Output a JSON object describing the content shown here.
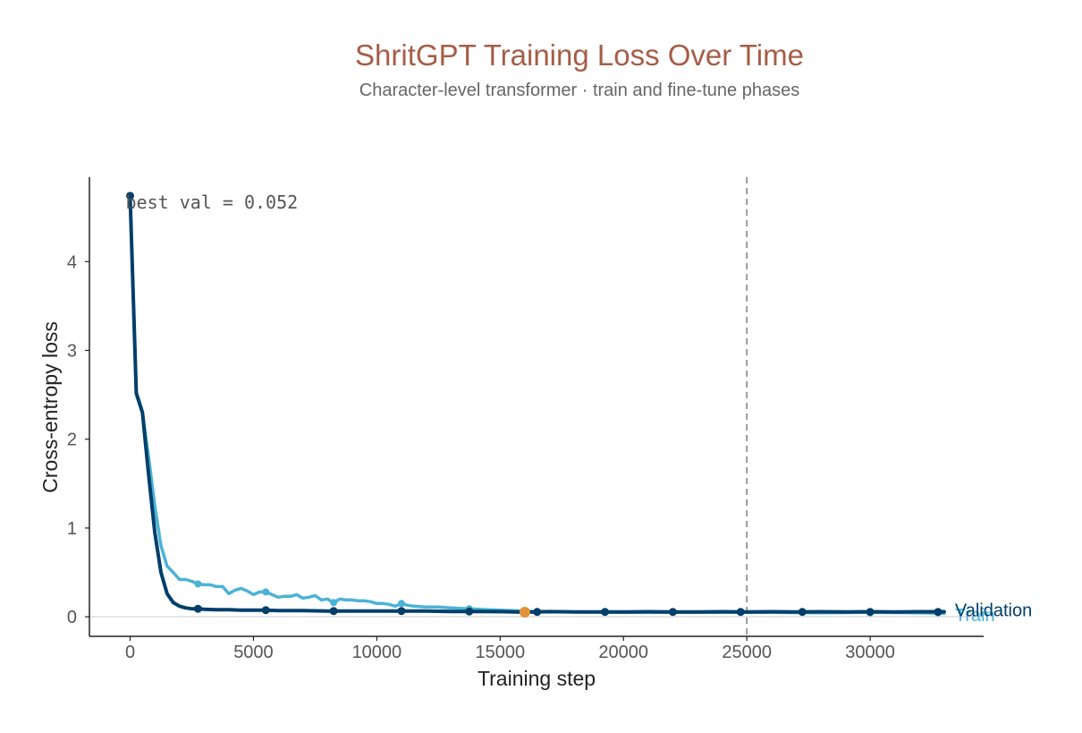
{
  "chart_data": {
    "type": "line",
    "title": "ShritGPT Training Loss Over Time",
    "subtitle": "Character-level transformer · train and fine-tune phases",
    "xlabel": "Training step",
    "ylabel": "Cross-entropy loss",
    "xlim": [
      -1650,
      34600
    ],
    "ylim": [
      -0.22,
      4.95
    ],
    "x_ticks": [
      0,
      5000,
      10000,
      15000,
      20000,
      25000,
      30000
    ],
    "y_ticks": [
      0,
      1,
      2,
      3,
      4
    ],
    "grid": false,
    "legend": "direct labels at right end of lines",
    "reference_lines": [
      {
        "orientation": "vertical",
        "x": 25000,
        "style": "dashed",
        "color": "#999999"
      },
      {
        "orientation": "horizontal",
        "y": 0,
        "style": "solid",
        "color": "#dddddd"
      }
    ],
    "annotations": [
      {
        "text": "best val = 0.052",
        "x": 0,
        "y": 4.67
      }
    ],
    "best_point": {
      "x": 16000,
      "y": 0.052,
      "color": "#e0913c"
    },
    "series": [
      {
        "name": "Train",
        "color": "#4bb3d6",
        "x": [
          0,
          250,
          500,
          750,
          1000,
          1250,
          1500,
          1750,
          2000,
          2250,
          2500,
          2750,
          3000,
          3250,
          3500,
          3750,
          4000,
          4250,
          4500,
          4750,
          5000,
          5250,
          5500,
          5750,
          6000,
          6250,
          6500,
          6750,
          7000,
          7250,
          7500,
          7750,
          8000,
          8250,
          8500,
          8750,
          9000,
          9250,
          9500,
          9750,
          10000,
          10250,
          10500,
          10750,
          11000,
          11250,
          11500,
          12000,
          12500,
          13000,
          13750,
          14500,
          15500,
          16500,
          18000,
          20000,
          22000,
          24000,
          26000,
          28000,
          30000,
          32000,
          33000
        ],
        "y": [
          4.74,
          2.5,
          2.3,
          1.8,
          1.25,
          0.8,
          0.57,
          0.5,
          0.42,
          0.42,
          0.4,
          0.37,
          0.36,
          0.36,
          0.34,
          0.34,
          0.26,
          0.3,
          0.32,
          0.29,
          0.25,
          0.28,
          0.28,
          0.25,
          0.22,
          0.23,
          0.23,
          0.25,
          0.21,
          0.22,
          0.24,
          0.19,
          0.2,
          0.16,
          0.2,
          0.19,
          0.19,
          0.18,
          0.18,
          0.17,
          0.15,
          0.15,
          0.14,
          0.12,
          0.15,
          0.13,
          0.12,
          0.11,
          0.11,
          0.1,
          0.09,
          0.08,
          0.07,
          0.06,
          0.055,
          0.05,
          0.05,
          0.05,
          0.05,
          0.045,
          0.05,
          0.045,
          0.04
        ],
        "markers_x": [
          0,
          2750,
          5500,
          8250,
          11000,
          13750,
          16500,
          19250,
          22000,
          24750,
          27250,
          30000,
          32750
        ],
        "markers_y": [
          4.74,
          0.37,
          0.28,
          0.16,
          0.15,
          0.09,
          0.06,
          0.055,
          0.05,
          0.05,
          0.05,
          0.045,
          0.045
        ]
      },
      {
        "name": "Validation",
        "color": "#003f6b",
        "x": [
          0,
          250,
          500,
          750,
          1000,
          1250,
          1500,
          1750,
          2000,
          2250,
          2500,
          2750,
          3000,
          3500,
          4000,
          4500,
          5000,
          5500,
          6000,
          7000,
          8000,
          9000,
          10000,
          11000,
          12000,
          13000,
          14000,
          15000,
          16000,
          17000,
          18000,
          19000,
          20000,
          21000,
          22000,
          23000,
          24000,
          25000,
          26000,
          27000,
          28000,
          29000,
          30000,
          31000,
          32000,
          33000
        ],
        "y": [
          4.74,
          2.52,
          2.3,
          1.6,
          0.95,
          0.5,
          0.26,
          0.16,
          0.12,
          0.1,
          0.09,
          0.09,
          0.085,
          0.08,
          0.08,
          0.075,
          0.075,
          0.075,
          0.07,
          0.07,
          0.065,
          0.065,
          0.065,
          0.065,
          0.065,
          0.06,
          0.06,
          0.058,
          0.052,
          0.058,
          0.055,
          0.055,
          0.055,
          0.057,
          0.055,
          0.055,
          0.057,
          0.055,
          0.057,
          0.055,
          0.057,
          0.055,
          0.057,
          0.055,
          0.057,
          0.057
        ],
        "markers_x": [
          0,
          2750,
          5500,
          8250,
          11000,
          13750,
          16500,
          19250,
          22000,
          24750,
          27250,
          30000,
          32750
        ],
        "markers_y": [
          4.74,
          0.09,
          0.075,
          0.065,
          0.065,
          0.06,
          0.055,
          0.055,
          0.055,
          0.055,
          0.055,
          0.055,
          0.055
        ]
      }
    ]
  },
  "colors": {
    "title": "#a65d47",
    "subtitle": "#666666",
    "axis": "#222222",
    "ticks": "#555555"
  }
}
